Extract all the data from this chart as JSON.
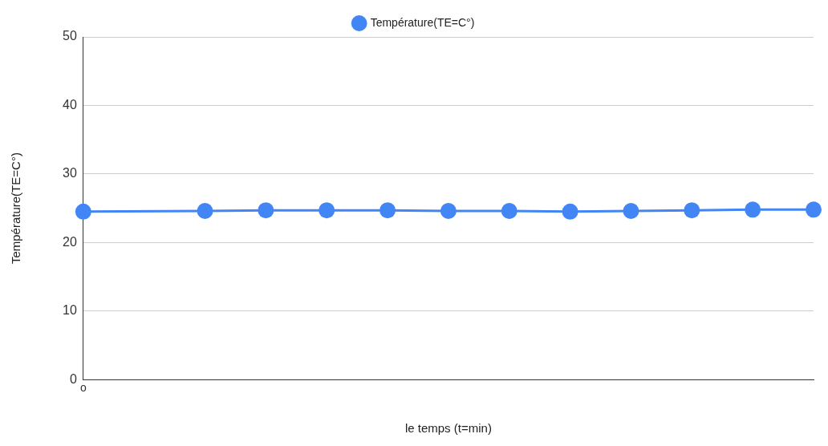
{
  "chart_data": {
    "type": "line",
    "xlabel": "le temps (t=min)",
    "ylabel": "Température(TE=C°)",
    "categories": [
      "o",
      null,
      null,
      null,
      null,
      null,
      null,
      null,
      null,
      null,
      null,
      null,
      null
    ],
    "series": [
      {
        "name": "Température(TE=C°)",
        "color": "#4285f4",
        "values": [
          24.5,
          null,
          24.6,
          24.7,
          24.7,
          24.7,
          24.6,
          24.6,
          24.5,
          24.6,
          24.7,
          24.8,
          24.8
        ]
      }
    ],
    "ylim": [
      0,
      50
    ],
    "yticks": [
      0,
      10,
      20,
      30,
      40,
      50
    ],
    "grid": true,
    "legend": "top",
    "marker": "circle",
    "line_style": "solid"
  }
}
